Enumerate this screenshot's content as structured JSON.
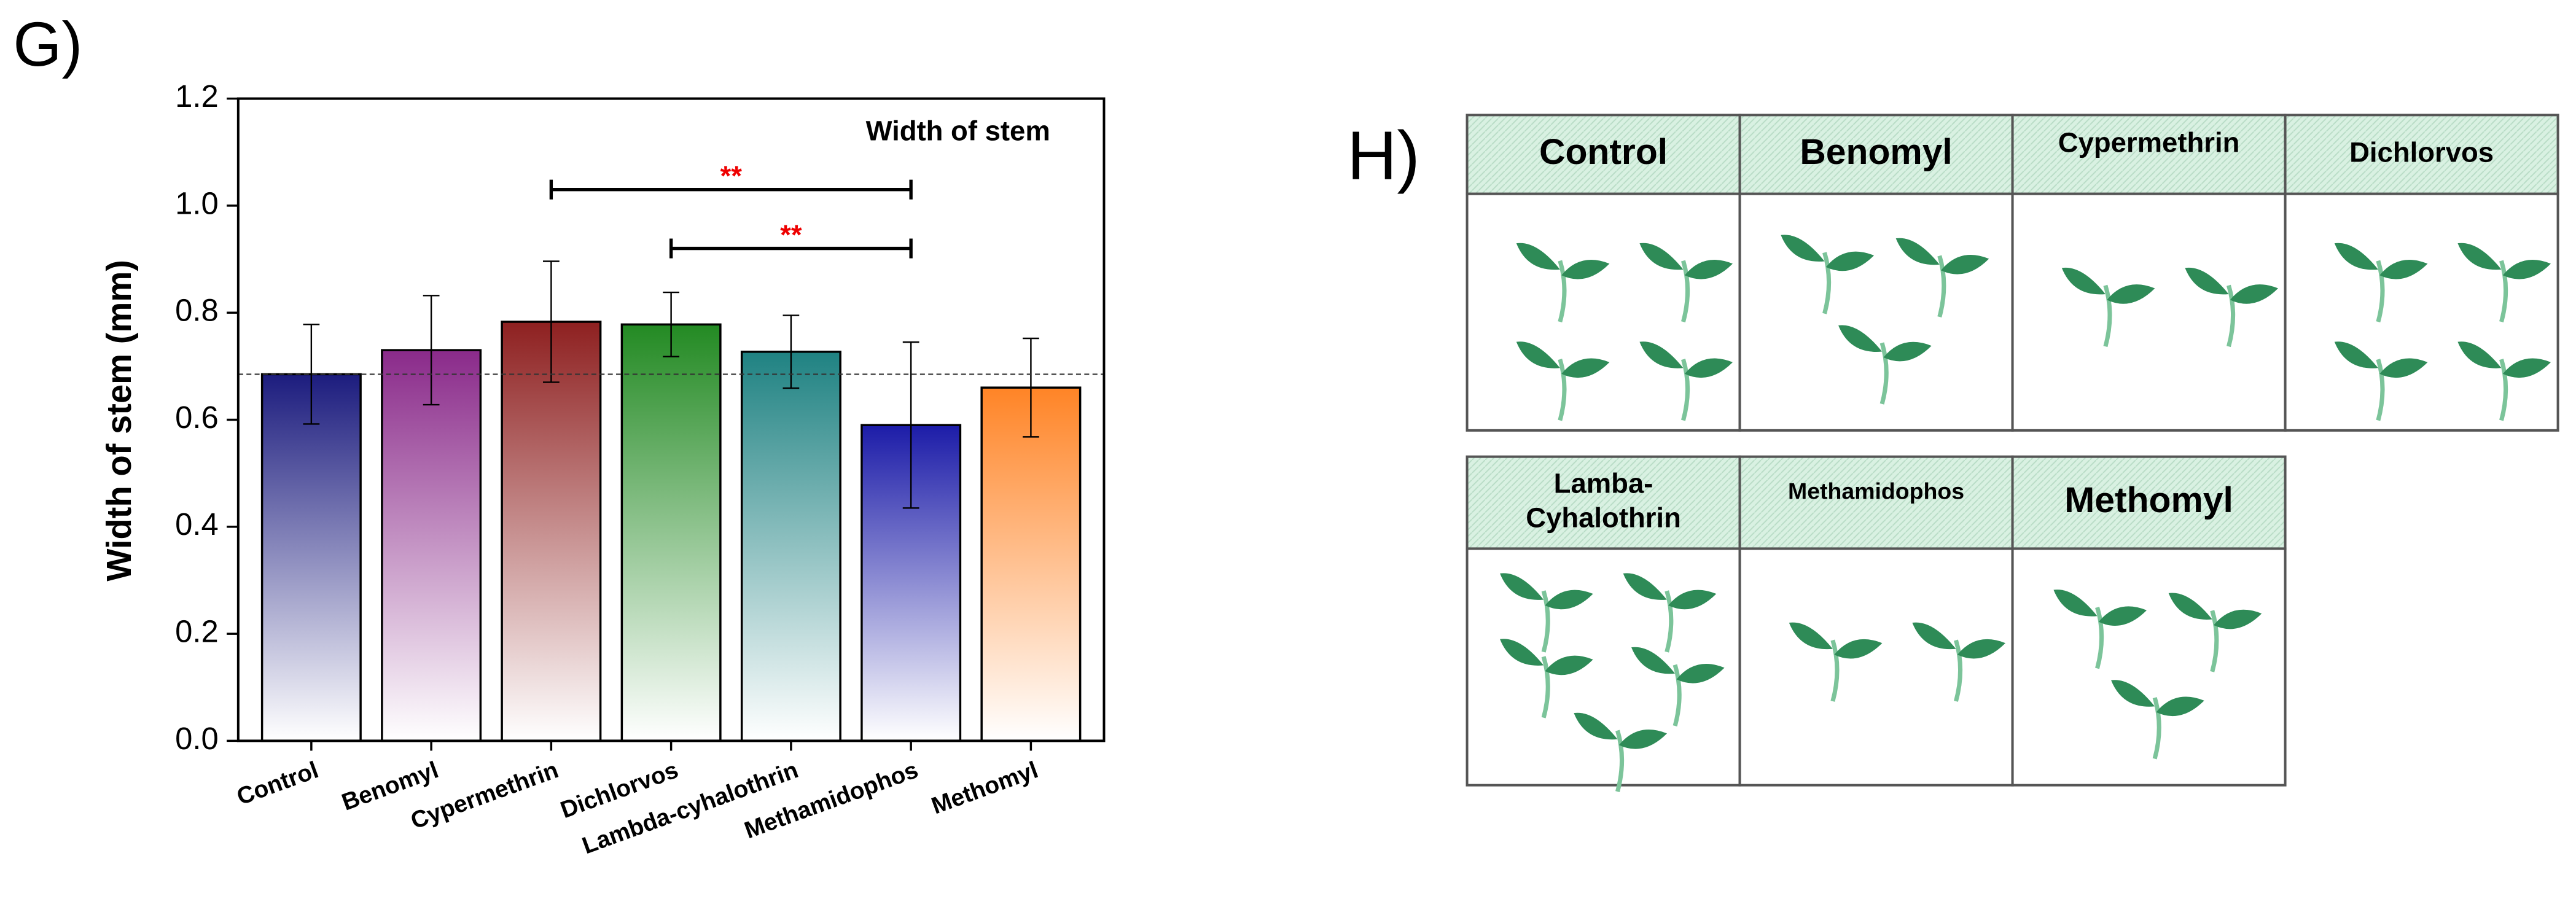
{
  "chart_data": {
    "type": "bar",
    "panel_label": "G)",
    "title": "Width of stem",
    "y_label": "Width of stem (mm)",
    "categories": [
      "Control",
      "Benomyl",
      "Cypermethrin",
      "Dichlorvos",
      "Lambda-cyhalothrin",
      "Methamidophos",
      "Methomyl"
    ],
    "values": [
      0.685,
      0.73,
      0.783,
      0.778,
      0.727,
      0.59,
      0.66
    ],
    "errors": [
      0.093,
      0.102,
      0.113,
      0.06,
      0.068,
      0.155,
      0.092
    ],
    "colors": [
      "#1c1c7e",
      "#8a2a8a",
      "#8e2020",
      "#238a23",
      "#1f8282",
      "#1c1ca8",
      "#ff8426"
    ],
    "reference_line": 0.685,
    "ylim": [
      0,
      1.2
    ],
    "yticks": [
      {
        "value": 0,
        "label": "0.0"
      },
      {
        "value": 0.2,
        "label": "0.2"
      },
      {
        "value": 0.4,
        "label": "0.4"
      },
      {
        "value": 0.6,
        "label": "0.6"
      },
      {
        "value": 0.8,
        "label": "0.8"
      },
      {
        "value": 1.0,
        "label": "1.0"
      },
      {
        "value": 1.2,
        "label": "1.2"
      }
    ],
    "annotations": [
      {
        "from": 2,
        "to": 5,
        "y": 1.03,
        "label": "**"
      },
      {
        "from": 3,
        "to": 5,
        "y": 0.92,
        "label": "**"
      }
    ]
  },
  "panel_h": {
    "label": "H)",
    "rows": [
      [
        {
          "label": [
            "Control"
          ],
          "seedlings": 4
        },
        {
          "label": [
            "Benomyl"
          ],
          "seedlings": 3
        },
        {
          "label": [
            "Cypermethrin"
          ],
          "seedlings": 2
        },
        {
          "label": [
            "Dichlorvos"
          ],
          "seedlings": 4
        }
      ],
      [
        {
          "label": [
            "Lamba-",
            "Cyhalothrin"
          ],
          "seedlings": 5
        },
        {
          "label": [
            "Methamidophos"
          ],
          "seedlings": 2
        },
        {
          "label": [
            "Methomyl"
          ],
          "seedlings": 3
        }
      ]
    ]
  }
}
